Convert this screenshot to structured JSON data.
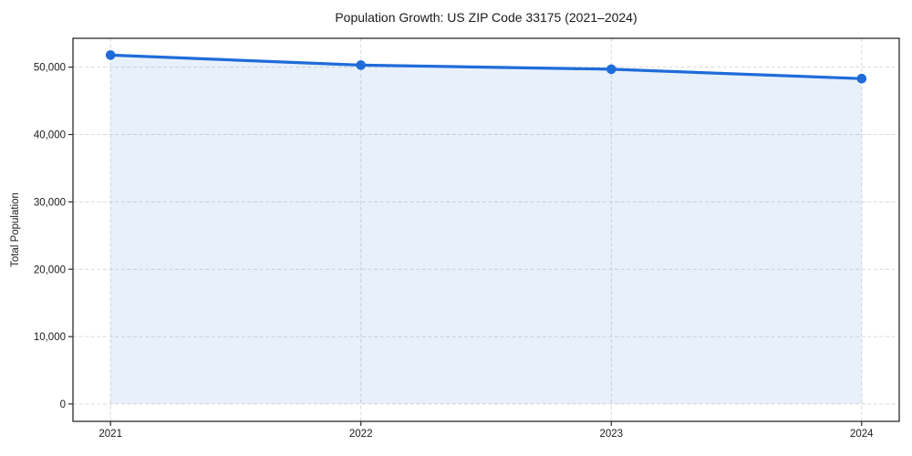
{
  "chart_data": {
    "type": "area",
    "title": "Population Growth: US ZIP Code 33175 (2021–2024)",
    "xlabel": "",
    "ylabel": "Total Population",
    "x": [
      2021,
      2022,
      2023,
      2024
    ],
    "x_tick_labels": [
      "2021",
      "2022",
      "2023",
      "2024"
    ],
    "values": [
      51800,
      50300,
      49700,
      48300
    ],
    "y_ticks": [
      0,
      10000,
      20000,
      30000,
      40000,
      50000
    ],
    "y_tick_labels": [
      "0",
      "10,000",
      "20,000",
      "30,000",
      "40,000",
      "50,000"
    ],
    "xlim": [
      2020.85,
      2024.15
    ],
    "ylim": [
      -2585,
      54285
    ],
    "fill_baseline": 0,
    "grid": true,
    "legend_position": "none",
    "colors": {
      "line": "#1f6cd9",
      "marker": "#1f6cd9",
      "fill": "rgba(31, 108, 217, 0.10)",
      "grid": "#d9d9d9",
      "spine": "#2b2b2b",
      "text": "#1a1a1a",
      "background": "#ffffff"
    }
  }
}
